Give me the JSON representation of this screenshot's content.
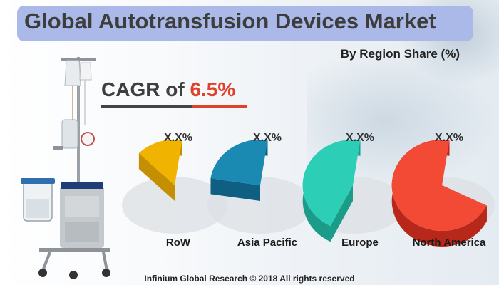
{
  "header": {
    "title": "Global Autotransfusion Devices Market",
    "subtitle": "By Region Share (%)"
  },
  "cagr": {
    "label": "CAGR of ",
    "value": "6.5%"
  },
  "footer": {
    "text": "Infinium Global Research © 2018 All rights reserved"
  },
  "chart_data": {
    "type": "pie",
    "title": "By Region Share (%)",
    "categories": [
      "RoW",
      "Asia Pacific",
      "Europe",
      "North America"
    ],
    "value_labels": [
      "X.X%",
      "X.X%",
      "X.X%",
      "X.X%"
    ],
    "relative_fill": [
      0.15,
      0.25,
      0.45,
      0.7
    ],
    "colors": [
      "#f0b400",
      "#1a8ab2",
      "#2ccfb6",
      "#f24a35"
    ],
    "side_colors": [
      "#c48f00",
      "#0f5f82",
      "#1a9c88",
      "#b8281a"
    ]
  }
}
